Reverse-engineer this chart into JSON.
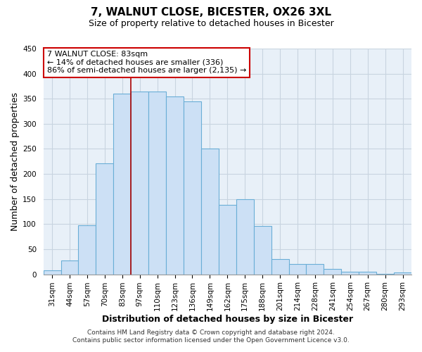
{
  "title": "7, WALNUT CLOSE, BICESTER, OX26 3XL",
  "subtitle": "Size of property relative to detached houses in Bicester",
  "xlabel": "Distribution of detached houses by size in Bicester",
  "ylabel": "Number of detached properties",
  "bar_labels": [
    "31sqm",
    "44sqm",
    "57sqm",
    "70sqm",
    "83sqm",
    "97sqm",
    "110sqm",
    "123sqm",
    "136sqm",
    "149sqm",
    "162sqm",
    "175sqm",
    "188sqm",
    "201sqm",
    "214sqm",
    "228sqm",
    "241sqm",
    "254sqm",
    "267sqm",
    "280sqm",
    "293sqm"
  ],
  "bar_values": [
    8,
    27,
    98,
    221,
    360,
    365,
    365,
    355,
    345,
    250,
    138,
    149,
    96,
    30,
    21,
    21,
    10,
    5,
    5,
    1,
    3
  ],
  "bar_color": "#cce0f5",
  "bar_edge_color": "#6aaed6",
  "vline_color": "#aa0000",
  "ylim": [
    0,
    450
  ],
  "yticks": [
    0,
    50,
    100,
    150,
    200,
    250,
    300,
    350,
    400,
    450
  ],
  "annotation_title": "7 WALNUT CLOSE: 83sqm",
  "annotation_line1": "← 14% of detached houses are smaller (336)",
  "annotation_line2": "86% of semi-detached houses are larger (2,135) →",
  "annotation_box_color": "#ffffff",
  "annotation_box_edge": "#cc0000",
  "footer1": "Contains HM Land Registry data © Crown copyright and database right 2024.",
  "footer2": "Contains public sector information licensed under the Open Government Licence v3.0.",
  "bg_color": "#ffffff",
  "plot_bg_color": "#e8f0f8",
  "grid_color": "#c8d4e0",
  "title_fontsize": 11,
  "subtitle_fontsize": 9,
  "axis_label_fontsize": 9,
  "tick_fontsize": 7.5,
  "footer_fontsize": 6.5,
  "vline_bar_index": 4
}
